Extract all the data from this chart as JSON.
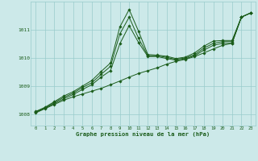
{
  "title": "Graphe pression niveau de la mer (hPa)",
  "bg_color": "#cce9e9",
  "grid_color": "#99cccc",
  "line_color": "#1a5c1a",
  "xlim": [
    -0.5,
    23.5
  ],
  "ylim": [
    1007.6,
    1012.0
  ],
  "yticks": [
    1008,
    1009,
    1010,
    1011
  ],
  "xticks": [
    0,
    1,
    2,
    3,
    4,
    5,
    6,
    7,
    8,
    9,
    10,
    11,
    12,
    13,
    14,
    15,
    16,
    17,
    18,
    19,
    20,
    21,
    22,
    23
  ],
  "series": [
    [
      1008.05,
      1008.2,
      1008.35,
      1008.5,
      1008.62,
      1008.72,
      1008.82,
      1008.92,
      1009.05,
      1009.18,
      1009.32,
      1009.45,
      1009.55,
      1009.65,
      1009.78,
      1009.88,
      1009.95,
      1010.05,
      1010.18,
      1010.32,
      1010.45,
      1010.52,
      1011.45,
      1011.6
    ],
    [
      1008.08,
      1008.22,
      1008.38,
      1008.55,
      1008.7,
      1008.88,
      1009.05,
      1009.32,
      1009.55,
      1010.5,
      1011.15,
      1010.55,
      1010.05,
      1010.05,
      1009.98,
      1009.92,
      1009.97,
      1010.08,
      1010.28,
      1010.45,
      1010.52,
      1010.52,
      1011.45,
      1011.6
    ],
    [
      1008.08,
      1008.22,
      1008.42,
      1008.6,
      1008.75,
      1008.95,
      1009.12,
      1009.42,
      1009.7,
      1010.85,
      1011.45,
      1010.7,
      1010.08,
      1010.08,
      1010.02,
      1009.95,
      1010.0,
      1010.12,
      1010.35,
      1010.52,
      1010.58,
      1010.58,
      1011.45,
      1011.6
    ],
    [
      1008.1,
      1008.25,
      1008.45,
      1008.65,
      1008.8,
      1009.0,
      1009.2,
      1009.52,
      1009.82,
      1011.1,
      1011.72,
      1010.95,
      1010.12,
      1010.1,
      1010.06,
      1009.98,
      1010.03,
      1010.18,
      1010.42,
      1010.6,
      1010.62,
      1010.62,
      1011.45,
      1011.6
    ]
  ]
}
